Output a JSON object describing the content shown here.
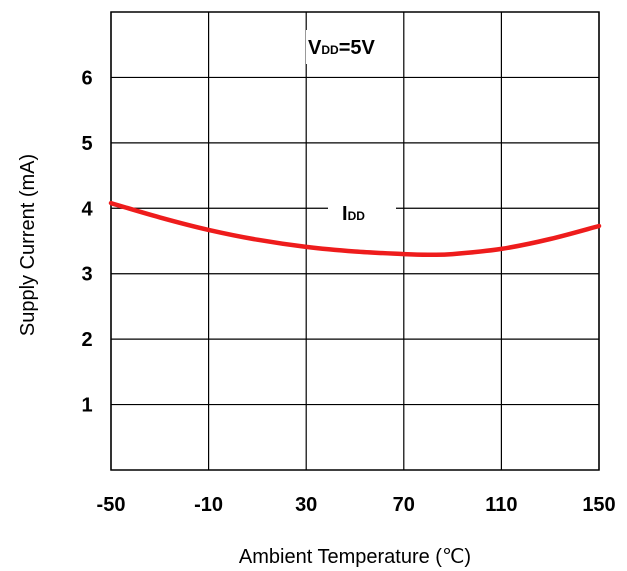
{
  "chart_data": {
    "type": "line",
    "title": "",
    "xlabel": "Ambient Temperature (℃)",
    "ylabel": "Supply Current (mA)",
    "xlim": [
      -50,
      150
    ],
    "ylim": [
      0,
      7
    ],
    "x_ticks": [
      -50,
      -10,
      30,
      70,
      110,
      150
    ],
    "x_tick_labels": [
      "-50",
      "-10",
      "30",
      "70",
      "110",
      "150"
    ],
    "y_ticks": [
      1,
      2,
      3,
      4,
      5,
      6
    ],
    "y_tick_labels": [
      "1",
      "2",
      "3",
      "4",
      "5",
      "6"
    ],
    "grid": true,
    "series": [
      {
        "name": "IDD",
        "color": "#ee1c1c",
        "x": [
          -50,
          -30,
          -10,
          10,
          30,
          50,
          70,
          80,
          90,
          110,
          130,
          150
        ],
        "y": [
          4.08,
          3.86,
          3.67,
          3.52,
          3.41,
          3.34,
          3.3,
          3.29,
          3.3,
          3.38,
          3.53,
          3.73
        ]
      }
    ],
    "annotations": [
      {
        "main": "V",
        "sub": "DD",
        "tail": "=5V"
      },
      {
        "main": "I",
        "sub": "DD",
        "tail": ""
      }
    ]
  }
}
